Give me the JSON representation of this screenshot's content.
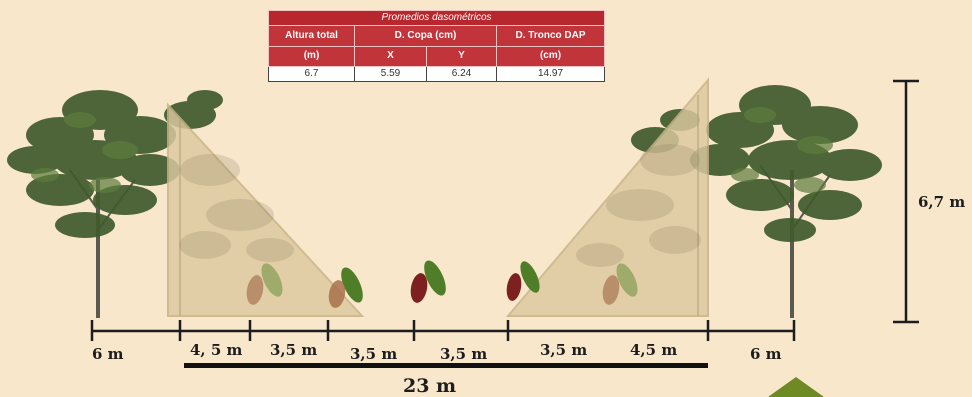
{
  "table": {
    "title": "Promedios dasométricos",
    "headers": {
      "altura": "Altura total",
      "altura_unit": "(m)",
      "copa": "D. Copa (cm)",
      "copa_x": "X",
      "copa_y": "Y",
      "tronco": "D. Tronco DAP",
      "tronco_unit": "(cm)"
    },
    "values": {
      "altura": "6.7",
      "copa_x": "5.59",
      "copa_y": "6.24",
      "tronco": "14.97"
    }
  },
  "dimensions": {
    "height_label": "6,7 m",
    "total_label": "23 m",
    "segments": [
      "6 m",
      "4, 5 m",
      "3,5 m",
      "3,5 m",
      "3,5 m",
      "3,5 m",
      "4,5 m",
      "6 m"
    ]
  },
  "colors": {
    "background": "#f8e7cb",
    "table_header": "#c0343a",
    "canopy_triangle": "#dcc9a0",
    "foliage": "#3f5a2c",
    "pod_green": "#5a8a2e",
    "pod_red": "#7d2020",
    "corner_marker": "#6e8a24"
  }
}
